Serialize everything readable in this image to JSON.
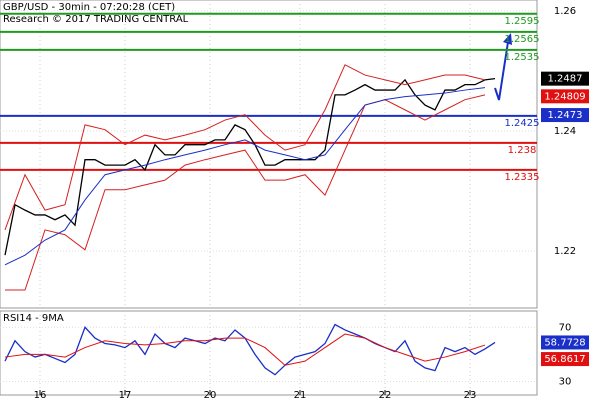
{
  "chart_data": [
    {
      "type": "line",
      "title": "GBP/USD - 30min - 07:20:28 (CET)",
      "subtitle": "Research © 2017 TRADING CENTRAL",
      "ylim": [
        1.2105,
        1.2618
      ],
      "yticks": [
        1.26,
        1.24,
        1.22
      ],
      "xticks": [
        {
          "value": 3.5,
          "label": "16"
        },
        {
          "value": 12,
          "label": "17"
        },
        {
          "value": 20.5,
          "label": "20"
        },
        {
          "value": 29.5,
          "label": "21"
        },
        {
          "value": 38,
          "label": "22"
        },
        {
          "value": 46.5,
          "label": "23"
        }
      ],
      "series": [
        {
          "color": "#000000",
          "x": [
            0,
            1,
            2,
            3,
            4,
            5,
            6,
            7,
            8,
            9,
            10,
            11,
            12,
            13,
            14,
            15,
            16,
            17,
            18,
            19,
            20,
            21,
            22,
            23,
            24,
            25,
            26,
            27,
            28,
            29,
            30,
            31,
            32,
            33,
            34,
            35,
            36,
            37,
            38,
            39,
            40,
            41,
            42,
            43,
            44,
            45,
            46,
            47,
            48,
            49
          ],
          "values": [
            1.2193,
            1.2277,
            1.2268,
            1.226,
            1.226,
            1.2252,
            1.226,
            1.2243,
            1.2352,
            1.2352,
            1.2343,
            1.2343,
            1.2343,
            1.2352,
            1.2335,
            1.2377,
            1.236,
            1.236,
            1.2377,
            1.2377,
            1.2377,
            1.2385,
            1.2385,
            1.241,
            1.2402,
            1.2377,
            1.2343,
            1.2343,
            1.2352,
            1.2352,
            1.2352,
            1.2352,
            1.2368,
            1.246,
            1.246,
            1.2468,
            1.2477,
            1.2468,
            1.2468,
            1.2468,
            1.2485,
            1.246,
            1.2443,
            1.2435,
            1.2468,
            1.2468,
            1.2477,
            1.2477,
            1.2485,
            1.2487
          ]
        },
        {
          "color": "#d62020",
          "x": [
            0,
            2,
            4,
            6,
            8,
            10,
            12,
            14,
            16,
            18,
            20,
            22,
            24,
            26,
            28,
            30,
            32,
            34,
            36,
            38,
            40,
            42,
            44,
            46,
            48
          ],
          "values": [
            1.2235,
            1.2327,
            1.2268,
            1.2277,
            1.241,
            1.2402,
            1.2377,
            1.2393,
            1.2385,
            1.2393,
            1.2402,
            1.2418,
            1.2427,
            1.2393,
            1.2368,
            1.2377,
            1.2435,
            1.251,
            1.2493,
            1.2485,
            1.2477,
            1.2485,
            1.2493,
            1.2493,
            1.2485
          ]
        },
        {
          "color": "#d62020",
          "x": [
            0,
            2,
            4,
            6,
            8,
            10,
            12,
            14,
            16,
            18,
            20,
            22,
            24,
            26,
            28,
            30,
            32,
            34,
            36,
            38,
            40,
            42,
            44,
            46,
            48
          ],
          "values": [
            1.2135,
            1.2135,
            1.2235,
            1.2227,
            1.2202,
            1.2302,
            1.2302,
            1.231,
            1.2318,
            1.2343,
            1.2352,
            1.236,
            1.2368,
            1.2318,
            1.2318,
            1.2327,
            1.2293,
            1.2368,
            1.2443,
            1.2452,
            1.2435,
            1.2418,
            1.2435,
            1.2452,
            1.246
          ]
        },
        {
          "color": "#1a2fc8",
          "x": [
            0,
            2,
            4,
            6,
            8,
            10,
            12,
            14,
            16,
            18,
            20,
            22,
            24,
            26,
            28,
            30,
            32,
            34,
            36,
            38,
            40,
            42,
            44,
            46,
            48
          ],
          "values": [
            1.2177,
            1.2193,
            1.2218,
            1.2235,
            1.2285,
            1.2327,
            1.2335,
            1.2343,
            1.2352,
            1.236,
            1.2368,
            1.2377,
            1.2385,
            1.2368,
            1.236,
            1.2352,
            1.236,
            1.2402,
            1.2443,
            1.2452,
            1.2457,
            1.246,
            1.2463,
            1.2468,
            1.2472
          ]
        }
      ],
      "levels": [
        {
          "value": 1.2595,
          "color": "#1f9a1f"
        },
        {
          "value": 1.2565,
          "color": "#1f9a1f"
        },
        {
          "value": 1.2535,
          "color": "#1f9a1f"
        },
        {
          "value": 1.2425,
          "color": "#1a2fc8"
        },
        {
          "value": 1.238,
          "color": "#e01010"
        },
        {
          "value": 1.2335,
          "color": "#e01010"
        }
      ],
      "price_labels": [
        {
          "value": 1.2487,
          "color": "#000000"
        },
        {
          "value": 1.24809,
          "color": "#e01010"
        },
        {
          "value": 1.2473,
          "color": "#1a2fc8"
        }
      ]
    },
    {
      "type": "line",
      "title": "RSI14 - 9MA",
      "ylim": [
        20,
        82
      ],
      "yticks": [
        70,
        30
      ],
      "series": [
        {
          "color": "#1a2fc8",
          "x": [
            0,
            1,
            2,
            3,
            4,
            5,
            6,
            7,
            8,
            9,
            10,
            11,
            12,
            13,
            14,
            15,
            16,
            17,
            18,
            19,
            20,
            21,
            22,
            23,
            24,
            25,
            26,
            27,
            28,
            29,
            30,
            31,
            32,
            33,
            34,
            35,
            36,
            37,
            38,
            39,
            40,
            41,
            42,
            43,
            44,
            45,
            46,
            47,
            48,
            49
          ],
          "values": [
            45,
            60,
            52,
            48,
            50,
            47,
            44,
            50,
            70,
            62,
            58,
            57,
            55,
            60,
            50,
            65,
            58,
            55,
            62,
            60,
            58,
            62,
            60,
            68,
            62,
            50,
            40,
            35,
            42,
            48,
            50,
            52,
            58,
            72,
            68,
            65,
            62,
            58,
            55,
            52,
            60,
            45,
            40,
            38,
            55,
            52,
            55,
            50,
            54,
            58.77
          ]
        },
        {
          "color": "#e01010",
          "x": [
            0,
            2,
            4,
            6,
            8,
            10,
            12,
            14,
            16,
            18,
            20,
            22,
            24,
            26,
            28,
            30,
            32,
            34,
            36,
            38,
            40,
            42,
            44,
            46,
            48
          ],
          "values": [
            48,
            50,
            50,
            48,
            55,
            60,
            58,
            57,
            58,
            60,
            60,
            62,
            62,
            55,
            42,
            45,
            55,
            65,
            62,
            55,
            50,
            45,
            48,
            52,
            56.86
          ]
        }
      ],
      "price_labels": [
        {
          "value": 58.7728,
          "color": "#1a2fc8"
        },
        {
          "value": 56.8617,
          "color": "#e01010"
        }
      ]
    }
  ]
}
